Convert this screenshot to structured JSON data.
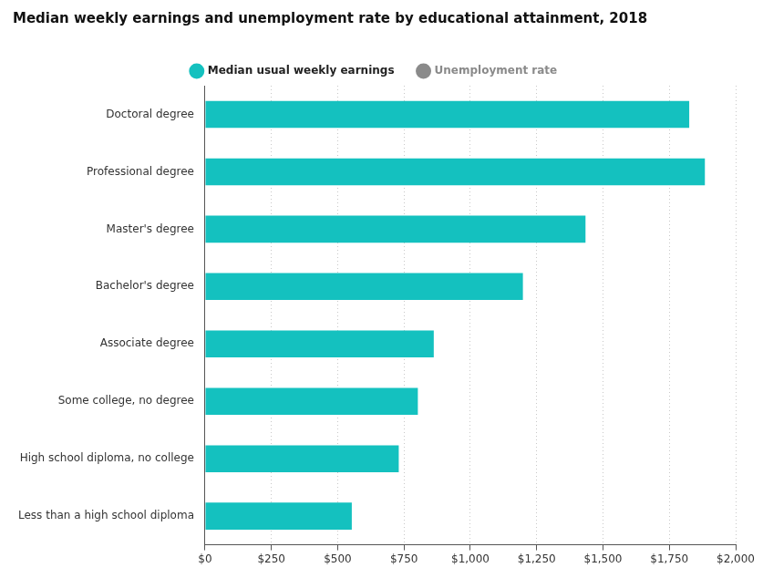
{
  "chart_data": {
    "type": "bar",
    "orientation": "horizontal",
    "title": "Median weekly earnings and unemployment rate by educational attainment, 2018",
    "categories": [
      "Doctoral degree",
      "Professional degree",
      "Master's degree",
      "Bachelor's degree",
      "Associate degree",
      "Some college, no degree",
      "High school diploma, no college",
      "Less than a high school diploma"
    ],
    "series": [
      {
        "name": "Median usual weekly earnings",
        "color": "#14c1bf",
        "values": [
          1825,
          1884,
          1434,
          1198,
          862,
          802,
          730,
          553
        ]
      },
      {
        "name": "Unemployment rate",
        "color": "#8a8a8a",
        "values": [
          null,
          null,
          null,
          null,
          null,
          null,
          null,
          null
        ]
      }
    ],
    "xlim": [
      0,
      2000
    ],
    "xticks": [
      {
        "value": 0,
        "label": "$0"
      },
      {
        "value": 250,
        "label": "$250"
      },
      {
        "value": 500,
        "label": "$500"
      },
      {
        "value": 750,
        "label": "$750"
      },
      {
        "value": 1000,
        "label": "$1,000"
      },
      {
        "value": 1250,
        "label": "$1,250"
      },
      {
        "value": 1500,
        "label": "$1,500"
      },
      {
        "value": 1750,
        "label": "$1,750"
      },
      {
        "value": 2000,
        "label": "$2,000"
      }
    ],
    "grid": true,
    "legend": "top"
  }
}
